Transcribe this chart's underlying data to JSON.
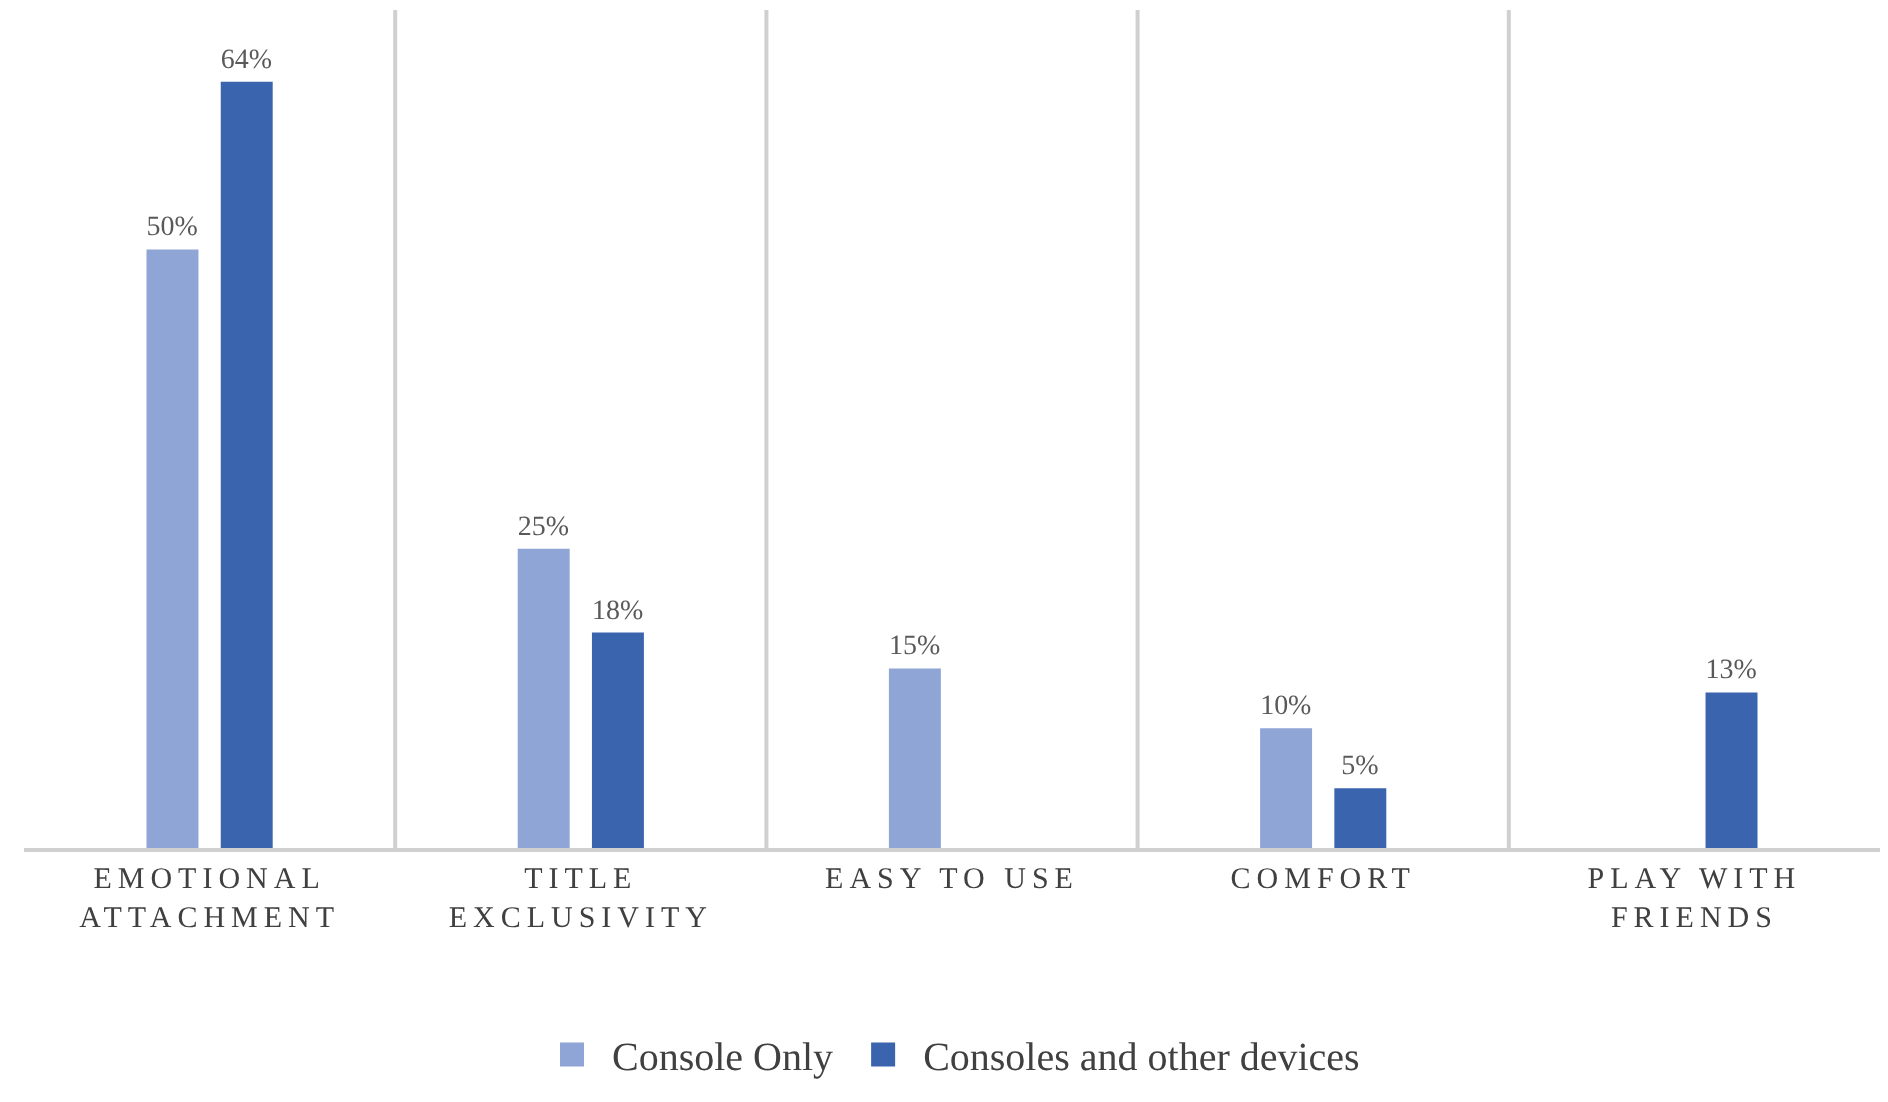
{
  "chart_data": {
    "type": "bar",
    "categories": [
      "EMOTIONAL ATTACHMENT",
      "TITLE EXCLUSIVITY",
      "EASY TO USE",
      "COMFORT",
      "PLAY WITH FRIENDS"
    ],
    "series": [
      {
        "name": "Console Only",
        "color": "#8fa5d6",
        "values": [
          50,
          25,
          15,
          10,
          null
        ],
        "value_labels": [
          "50%",
          "25%",
          "15%",
          "10%",
          null
        ]
      },
      {
        "name": "Consoles and other devices",
        "color": "#3a64ae",
        "values": [
          64,
          18,
          null,
          5,
          13
        ],
        "value_labels": [
          "64%",
          "18%",
          null,
          "5%",
          "13%"
        ]
      }
    ],
    "ylim": [
      0,
      70
    ],
    "tick_labels": "x",
    "grid": "x",
    "legend": "bottom"
  }
}
